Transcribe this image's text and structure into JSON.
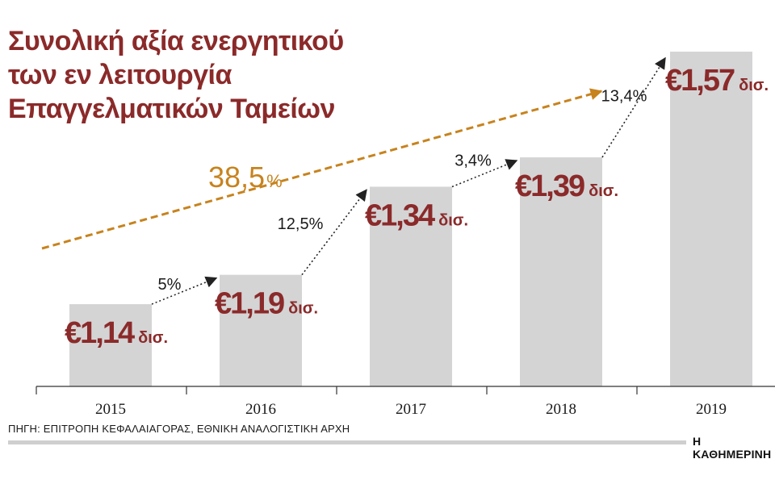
{
  "title": "Συνολική αξία ενεργητικού\nτων εν λειτουργία\nΕπαγγελματικών Ταμείων",
  "source": "ΠΗΓΗ: ΕΠΙΤΡΟΠΗ ΚΕΦΑΛΑΙΑΓΟΡΑΣ, ΕΘΝΙΚΗ ΑΝΑΛΟΓΙΣΤΙΚΗ ΑΡΧΗ",
  "publisher": "Η ΚΑΘΗΜΕΡΙΝΗ",
  "colors": {
    "title": "#8b2a2a",
    "value_label": "#8b2a2a",
    "bar": "#d4d4d5",
    "trend": "#c7831e",
    "growth_arrow": "#222222",
    "axis": "#333333"
  },
  "chart_data": {
    "type": "bar",
    "categories": [
      "2015",
      "2016",
      "2017",
      "2018",
      "2019"
    ],
    "values": [
      1.14,
      1.19,
      1.34,
      1.39,
      1.57
    ],
    "value_labels": [
      {
        "main": "€1,14",
        "unit": "δισ."
      },
      {
        "main": "€1,19",
        "unit": "δισ."
      },
      {
        "main": "€1,34",
        "unit": "δισ."
      },
      {
        "main": "€1,39",
        "unit": "δισ."
      },
      {
        "main": "€1,57",
        "unit": "δισ."
      }
    ],
    "growth_labels": [
      "5%",
      "12,5%",
      "3,4%",
      "13,4%"
    ],
    "overall_growth": {
      "value": "38,5",
      "unit": "%"
    },
    "ylim": [
      1.0,
      1.6
    ],
    "xlabel": "",
    "ylabel": "",
    "grid": false,
    "legend": "none"
  }
}
